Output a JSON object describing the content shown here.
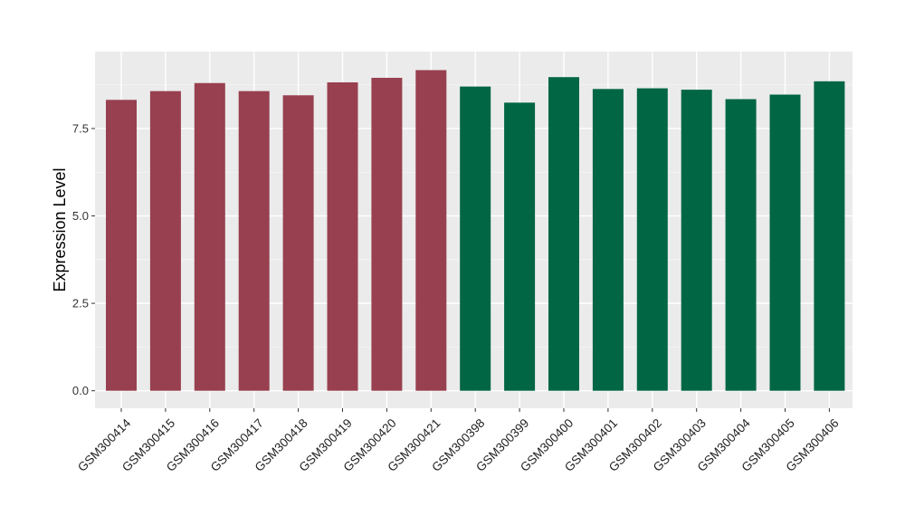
{
  "chart_data": {
    "type": "bar",
    "title": "",
    "xlabel": "",
    "ylabel": "Expression Level",
    "ylim": [
      -0.5,
      9.7
    ],
    "yticks": [
      0.0,
      2.5,
      5.0,
      7.5
    ],
    "ytick_labels": [
      "0.0",
      "2.5",
      "5.0",
      "7.5"
    ],
    "grid": true,
    "background": "#ebebeb",
    "categories": [
      "GSM300414",
      "GSM300415",
      "GSM300416",
      "GSM300417",
      "GSM300418",
      "GSM300419",
      "GSM300420",
      "GSM300421",
      "GSM300398",
      "GSM300399",
      "GSM300400",
      "GSM300401",
      "GSM300402",
      "GSM300403",
      "GSM300404",
      "GSM300405",
      "GSM300406"
    ],
    "values": [
      8.32,
      8.57,
      8.8,
      8.57,
      8.45,
      8.82,
      8.95,
      9.17,
      8.7,
      8.24,
      8.97,
      8.63,
      8.65,
      8.61,
      8.34,
      8.47,
      8.85
    ],
    "bar_colors": [
      "#98404f",
      "#98404f",
      "#98404f",
      "#98404f",
      "#98404f",
      "#98404f",
      "#98404f",
      "#98404f",
      "#006644",
      "#006644",
      "#006644",
      "#006644",
      "#006644",
      "#006644",
      "#006644",
      "#006644",
      "#006644"
    ]
  }
}
